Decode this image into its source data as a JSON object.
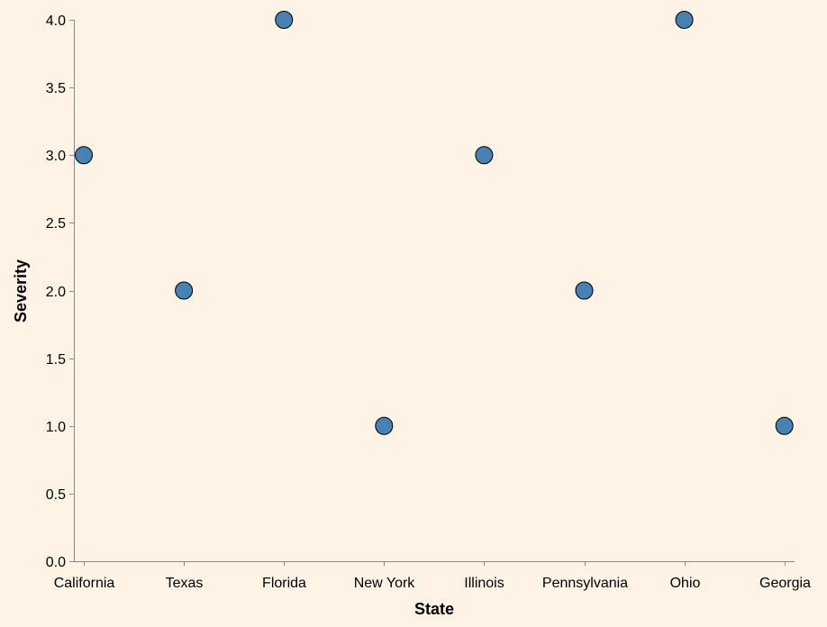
{
  "chart_data": {
    "type": "scatter",
    "categories": [
      "California",
      "Texas",
      "Florida",
      "New York",
      "Illinois",
      "Pennsylvania",
      "Ohio",
      "Georgia"
    ],
    "values": [
      3.0,
      2.0,
      4.0,
      1.0,
      3.0,
      2.0,
      4.0,
      1.0
    ],
    "xlabel": "State",
    "ylabel": "Severity",
    "ylim": [
      0,
      4
    ],
    "yticks": [
      "0.0",
      "0.5",
      "1.0",
      "1.5",
      "2.0",
      "2.5",
      "3.0",
      "3.5",
      "4.0"
    ],
    "point_color": "#4682b4",
    "background_color": "#fef3e5",
    "grid": false
  }
}
